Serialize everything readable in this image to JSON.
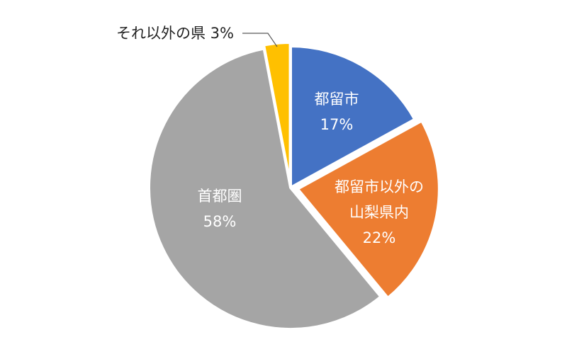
{
  "chart_data": {
    "type": "pie",
    "categories": [
      "都留市",
      "都留市以外の山梨県内",
      "首都圏",
      "それ以外の県"
    ],
    "values": [
      17,
      22,
      58,
      3
    ],
    "percent_labels": [
      "17%",
      "22%",
      "58%",
      "3%"
    ],
    "colors": [
      "#4472C4",
      "#ED7D31",
      "#A5A5A5",
      "#FFC000"
    ],
    "start": "12 o'clock",
    "direction": "clockwise",
    "title": "",
    "legend": "none",
    "labels_inside": [
      {
        "lines": [
          "都留市",
          "17%"
        ]
      },
      {
        "lines": [
          "都留市以外の",
          "山梨県内",
          "22%"
        ]
      },
      {
        "lines": [
          "首都圏",
          "58%"
        ]
      }
    ],
    "callout_label": "それ以外の県 3%"
  }
}
